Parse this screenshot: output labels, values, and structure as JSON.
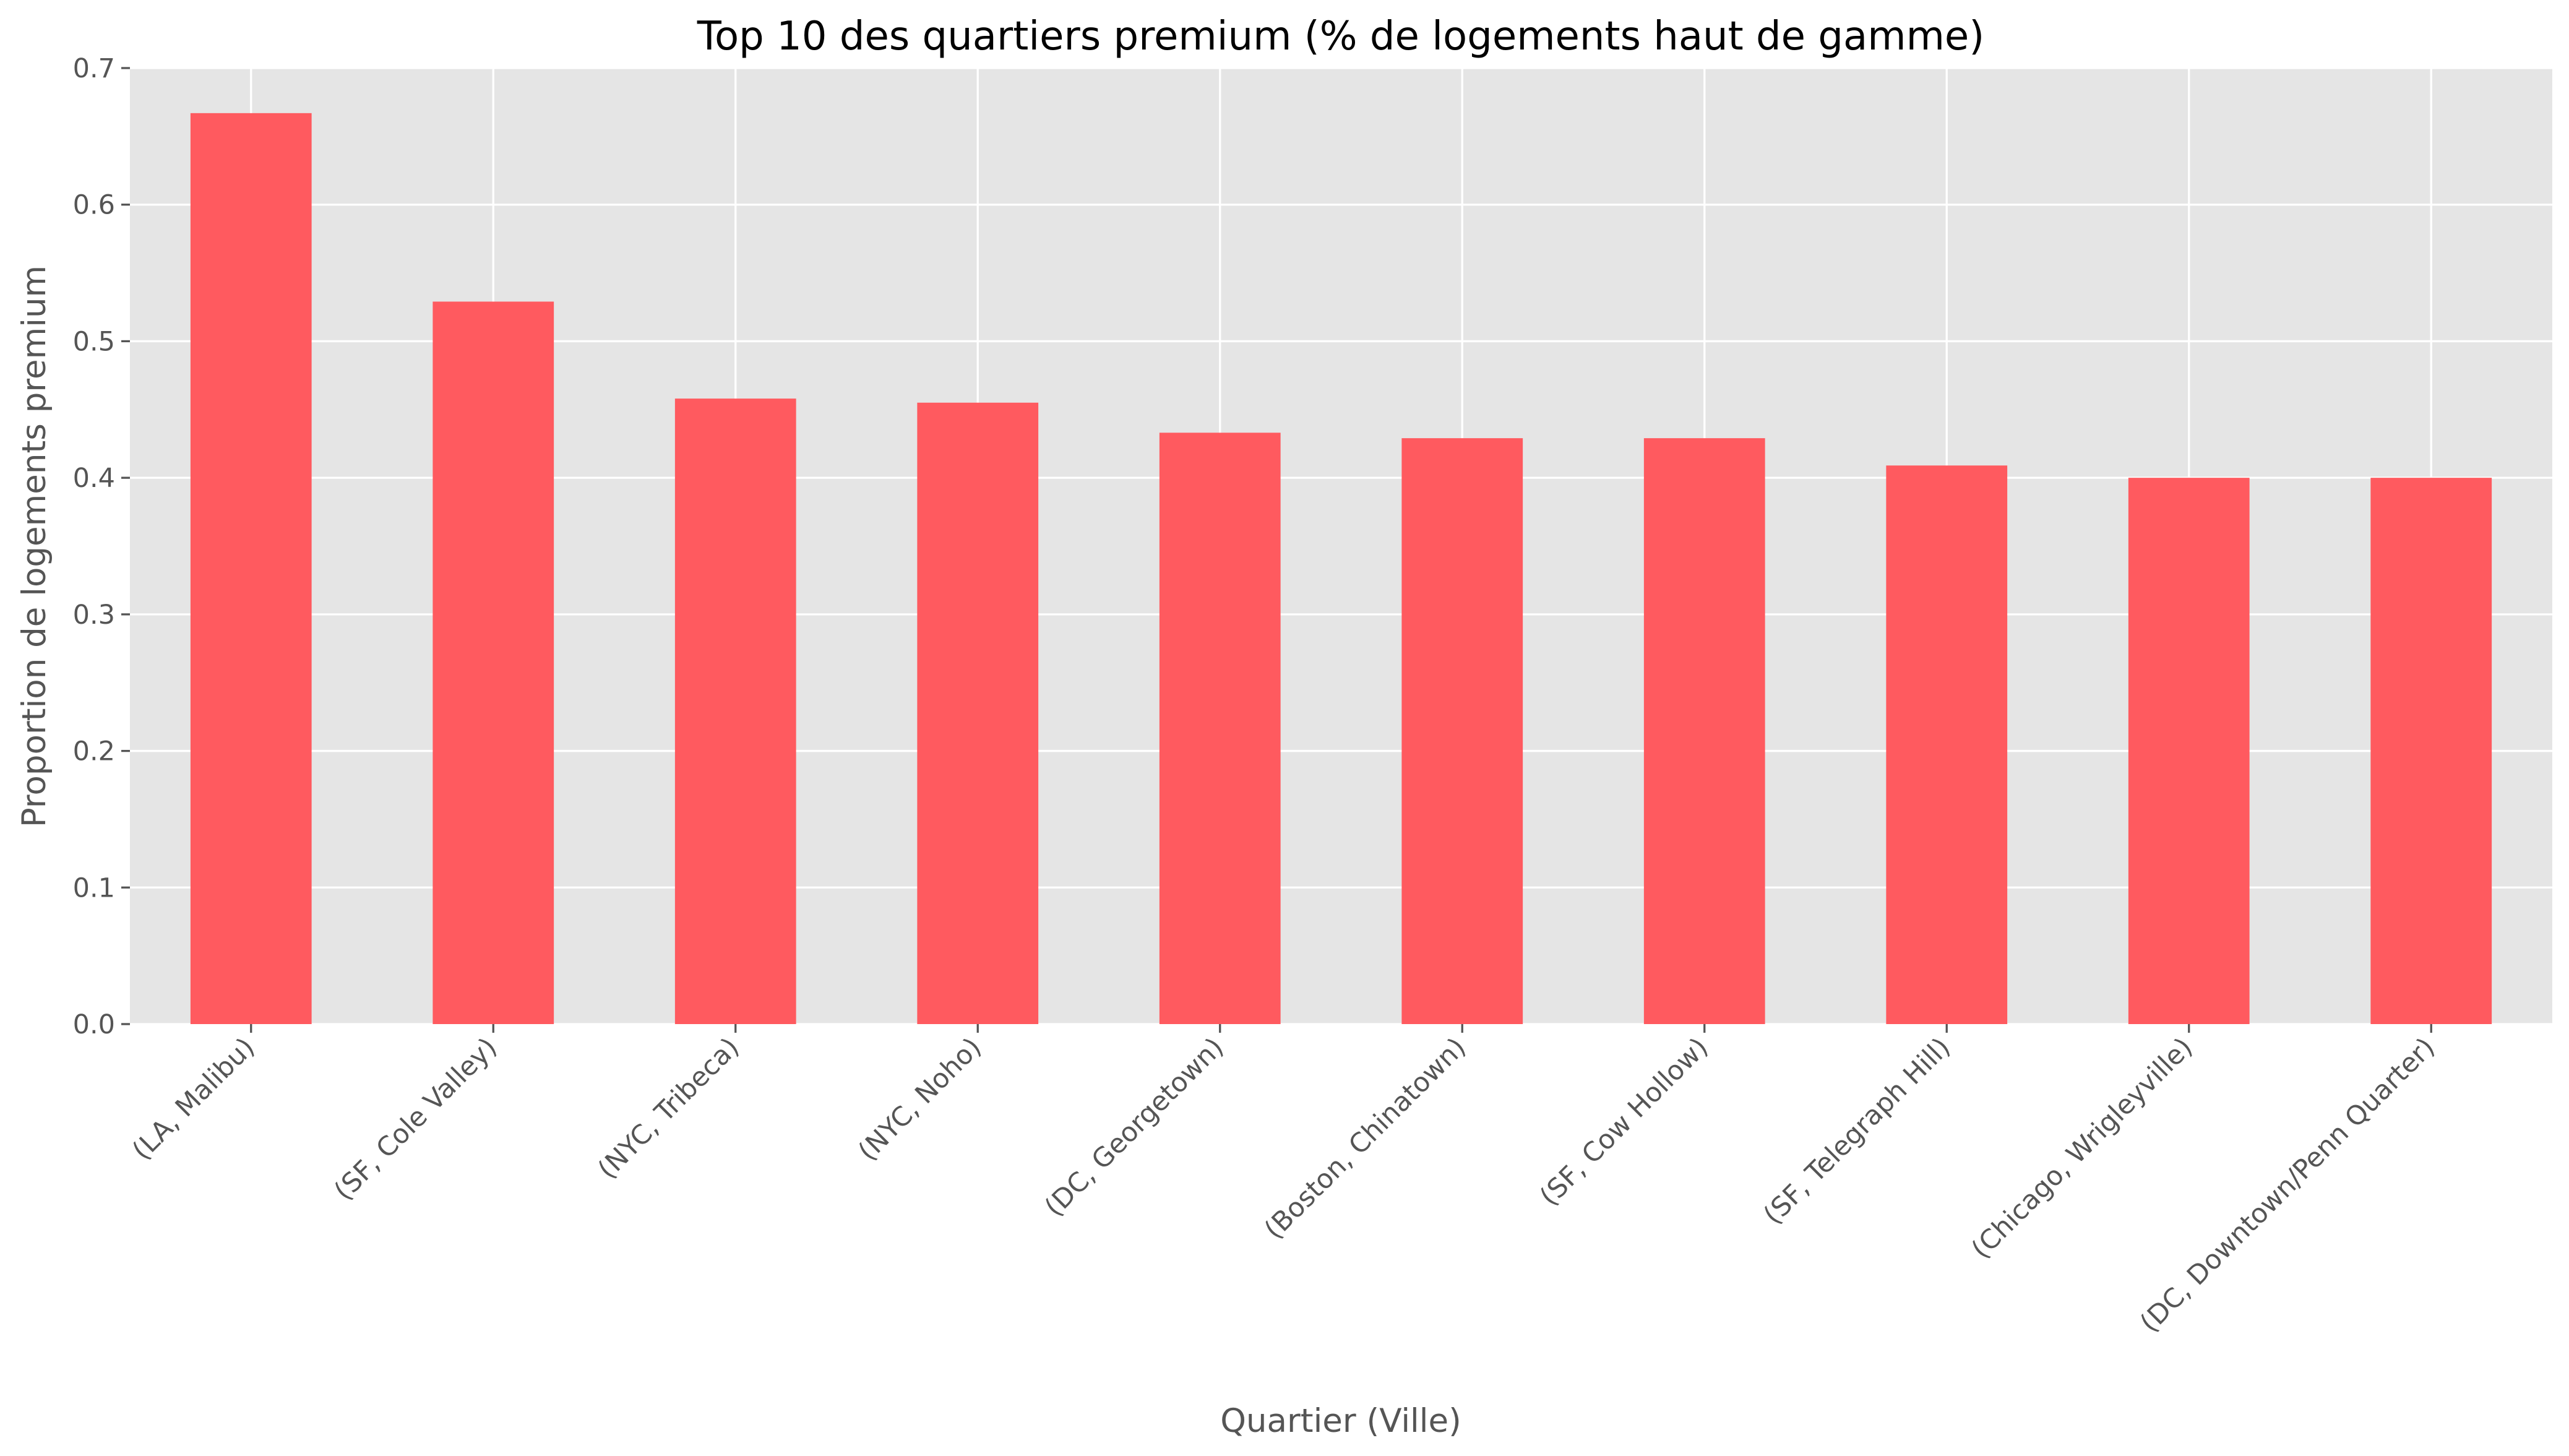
{
  "chart_data": {
    "type": "bar",
    "title": "Top 10 des quartiers premium (% de logements haut de gamme)",
    "xlabel": "Quartier (Ville)",
    "ylabel": "Proportion de logements premium",
    "categories": [
      "(LA, Malibu)",
      "(SF, Cole Valley)",
      "(NYC, Tribeca)",
      "(NYC, Noho)",
      "(DC, Georgetown)",
      "(Boston, Chinatown)",
      "(SF, Cow Hollow)",
      "(SF, Telegraph Hill)",
      "(Chicago, Wrigleyville)",
      "(DC, Downtown/Penn Quarter)"
    ],
    "values": [
      0.667,
      0.529,
      0.458,
      0.455,
      0.433,
      0.429,
      0.429,
      0.409,
      0.4,
      0.4
    ],
    "ylim": [
      0,
      0.7
    ],
    "yticks": [
      0.0,
      0.1,
      0.2,
      0.3,
      0.4,
      0.5,
      0.6,
      0.7
    ],
    "ytick_labels": [
      "0.0",
      "0.1",
      "0.2",
      "0.3",
      "0.4",
      "0.5",
      "0.6",
      "0.7"
    ],
    "grid": true,
    "legend": "none",
    "bar_color": "#ff5a5f",
    "background_color": "#e5e5e5",
    "grid_color": "#ffffff",
    "text_color": "#555555"
  }
}
